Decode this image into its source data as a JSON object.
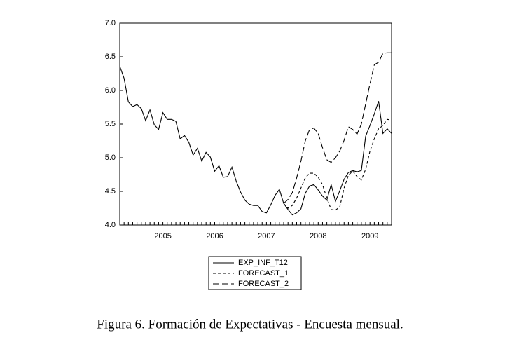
{
  "chart_data": {
    "type": "line",
    "caption": "Figura 6. Formación de Expectativas - Encuesta mensual.",
    "categories": [
      null,
      null,
      null,
      null,
      null,
      null,
      null,
      null,
      null,
      null,
      "2005",
      null,
      null,
      null,
      null,
      null,
      null,
      null,
      null,
      null,
      null,
      null,
      "2006",
      null,
      null,
      null,
      null,
      null,
      null,
      null,
      null,
      null,
      null,
      null,
      "2007",
      null,
      null,
      null,
      null,
      null,
      null,
      null,
      null,
      null,
      null,
      null,
      "2008",
      null,
      null,
      null,
      null,
      null,
      null,
      null,
      null,
      null,
      null,
      null,
      "2009",
      null,
      null,
      null,
      null,
      null
    ],
    "series": [
      {
        "name": "EXP_INF_T12",
        "color": "#000000",
        "dash": "none",
        "values": [
          6.36,
          6.18,
          5.83,
          5.76,
          5.79,
          5.73,
          5.55,
          5.71,
          5.49,
          5.42,
          5.67,
          5.57,
          5.57,
          5.54,
          5.28,
          5.33,
          5.23,
          5.04,
          5.14,
          4.95,
          5.08,
          5.01,
          4.8,
          4.88,
          4.71,
          4.72,
          4.86,
          4.65,
          4.49,
          4.37,
          4.31,
          4.29,
          4.29,
          4.2,
          4.18,
          4.3,
          4.44,
          4.53,
          4.32,
          4.23,
          4.15,
          4.18,
          4.24,
          4.47,
          4.58,
          4.6,
          4.52,
          4.43,
          4.37,
          4.6,
          4.35,
          4.51,
          4.68,
          4.78,
          4.81,
          4.79,
          4.81,
          5.32,
          5.48,
          5.65,
          5.84,
          5.36,
          5.43,
          5.36
        ]
      },
      {
        "name": "FORECAST_1",
        "color": "#000000",
        "dash": "4 3",
        "values": [
          null,
          null,
          null,
          null,
          null,
          null,
          null,
          null,
          null,
          null,
          null,
          null,
          null,
          null,
          null,
          null,
          null,
          null,
          null,
          null,
          null,
          null,
          null,
          null,
          null,
          null,
          null,
          null,
          null,
          null,
          null,
          null,
          null,
          null,
          null,
          null,
          null,
          null,
          4.32,
          4.25,
          4.29,
          4.4,
          4.55,
          4.7,
          4.77,
          4.77,
          4.71,
          4.6,
          4.4,
          4.23,
          4.22,
          4.27,
          4.55,
          4.74,
          4.8,
          4.72,
          4.67,
          4.83,
          5.1,
          5.28,
          5.43,
          5.48,
          5.57,
          5.56
        ]
      },
      {
        "name": "FORECAST_2",
        "color": "#000000",
        "dash": "9 4",
        "values": [
          null,
          null,
          null,
          null,
          null,
          null,
          null,
          null,
          null,
          null,
          null,
          null,
          null,
          null,
          null,
          null,
          null,
          null,
          null,
          null,
          null,
          null,
          null,
          null,
          null,
          null,
          null,
          null,
          null,
          null,
          null,
          null,
          null,
          null,
          null,
          null,
          null,
          null,
          4.32,
          4.38,
          4.48,
          4.7,
          4.95,
          5.25,
          5.42,
          5.44,
          5.36,
          5.15,
          4.97,
          4.93,
          5.0,
          5.1,
          5.26,
          5.46,
          5.42,
          5.35,
          5.5,
          5.8,
          6.1,
          6.38,
          6.42,
          6.55,
          6.56,
          6.56
        ]
      }
    ],
    "ylim": [
      4.0,
      7.0
    ],
    "yticks": [
      {
        "value": 4.0,
        "label": "4.0"
      },
      {
        "value": 4.5,
        "label": "4.5"
      },
      {
        "value": 5.0,
        "label": "5.0"
      },
      {
        "value": 5.5,
        "label": "5.5"
      },
      {
        "value": 6.0,
        "label": "6.0"
      },
      {
        "value": 6.5,
        "label": "6.5"
      },
      {
        "value": 7.0,
        "label": "7.0"
      }
    ],
    "grid": false,
    "legend": "bottom"
  }
}
